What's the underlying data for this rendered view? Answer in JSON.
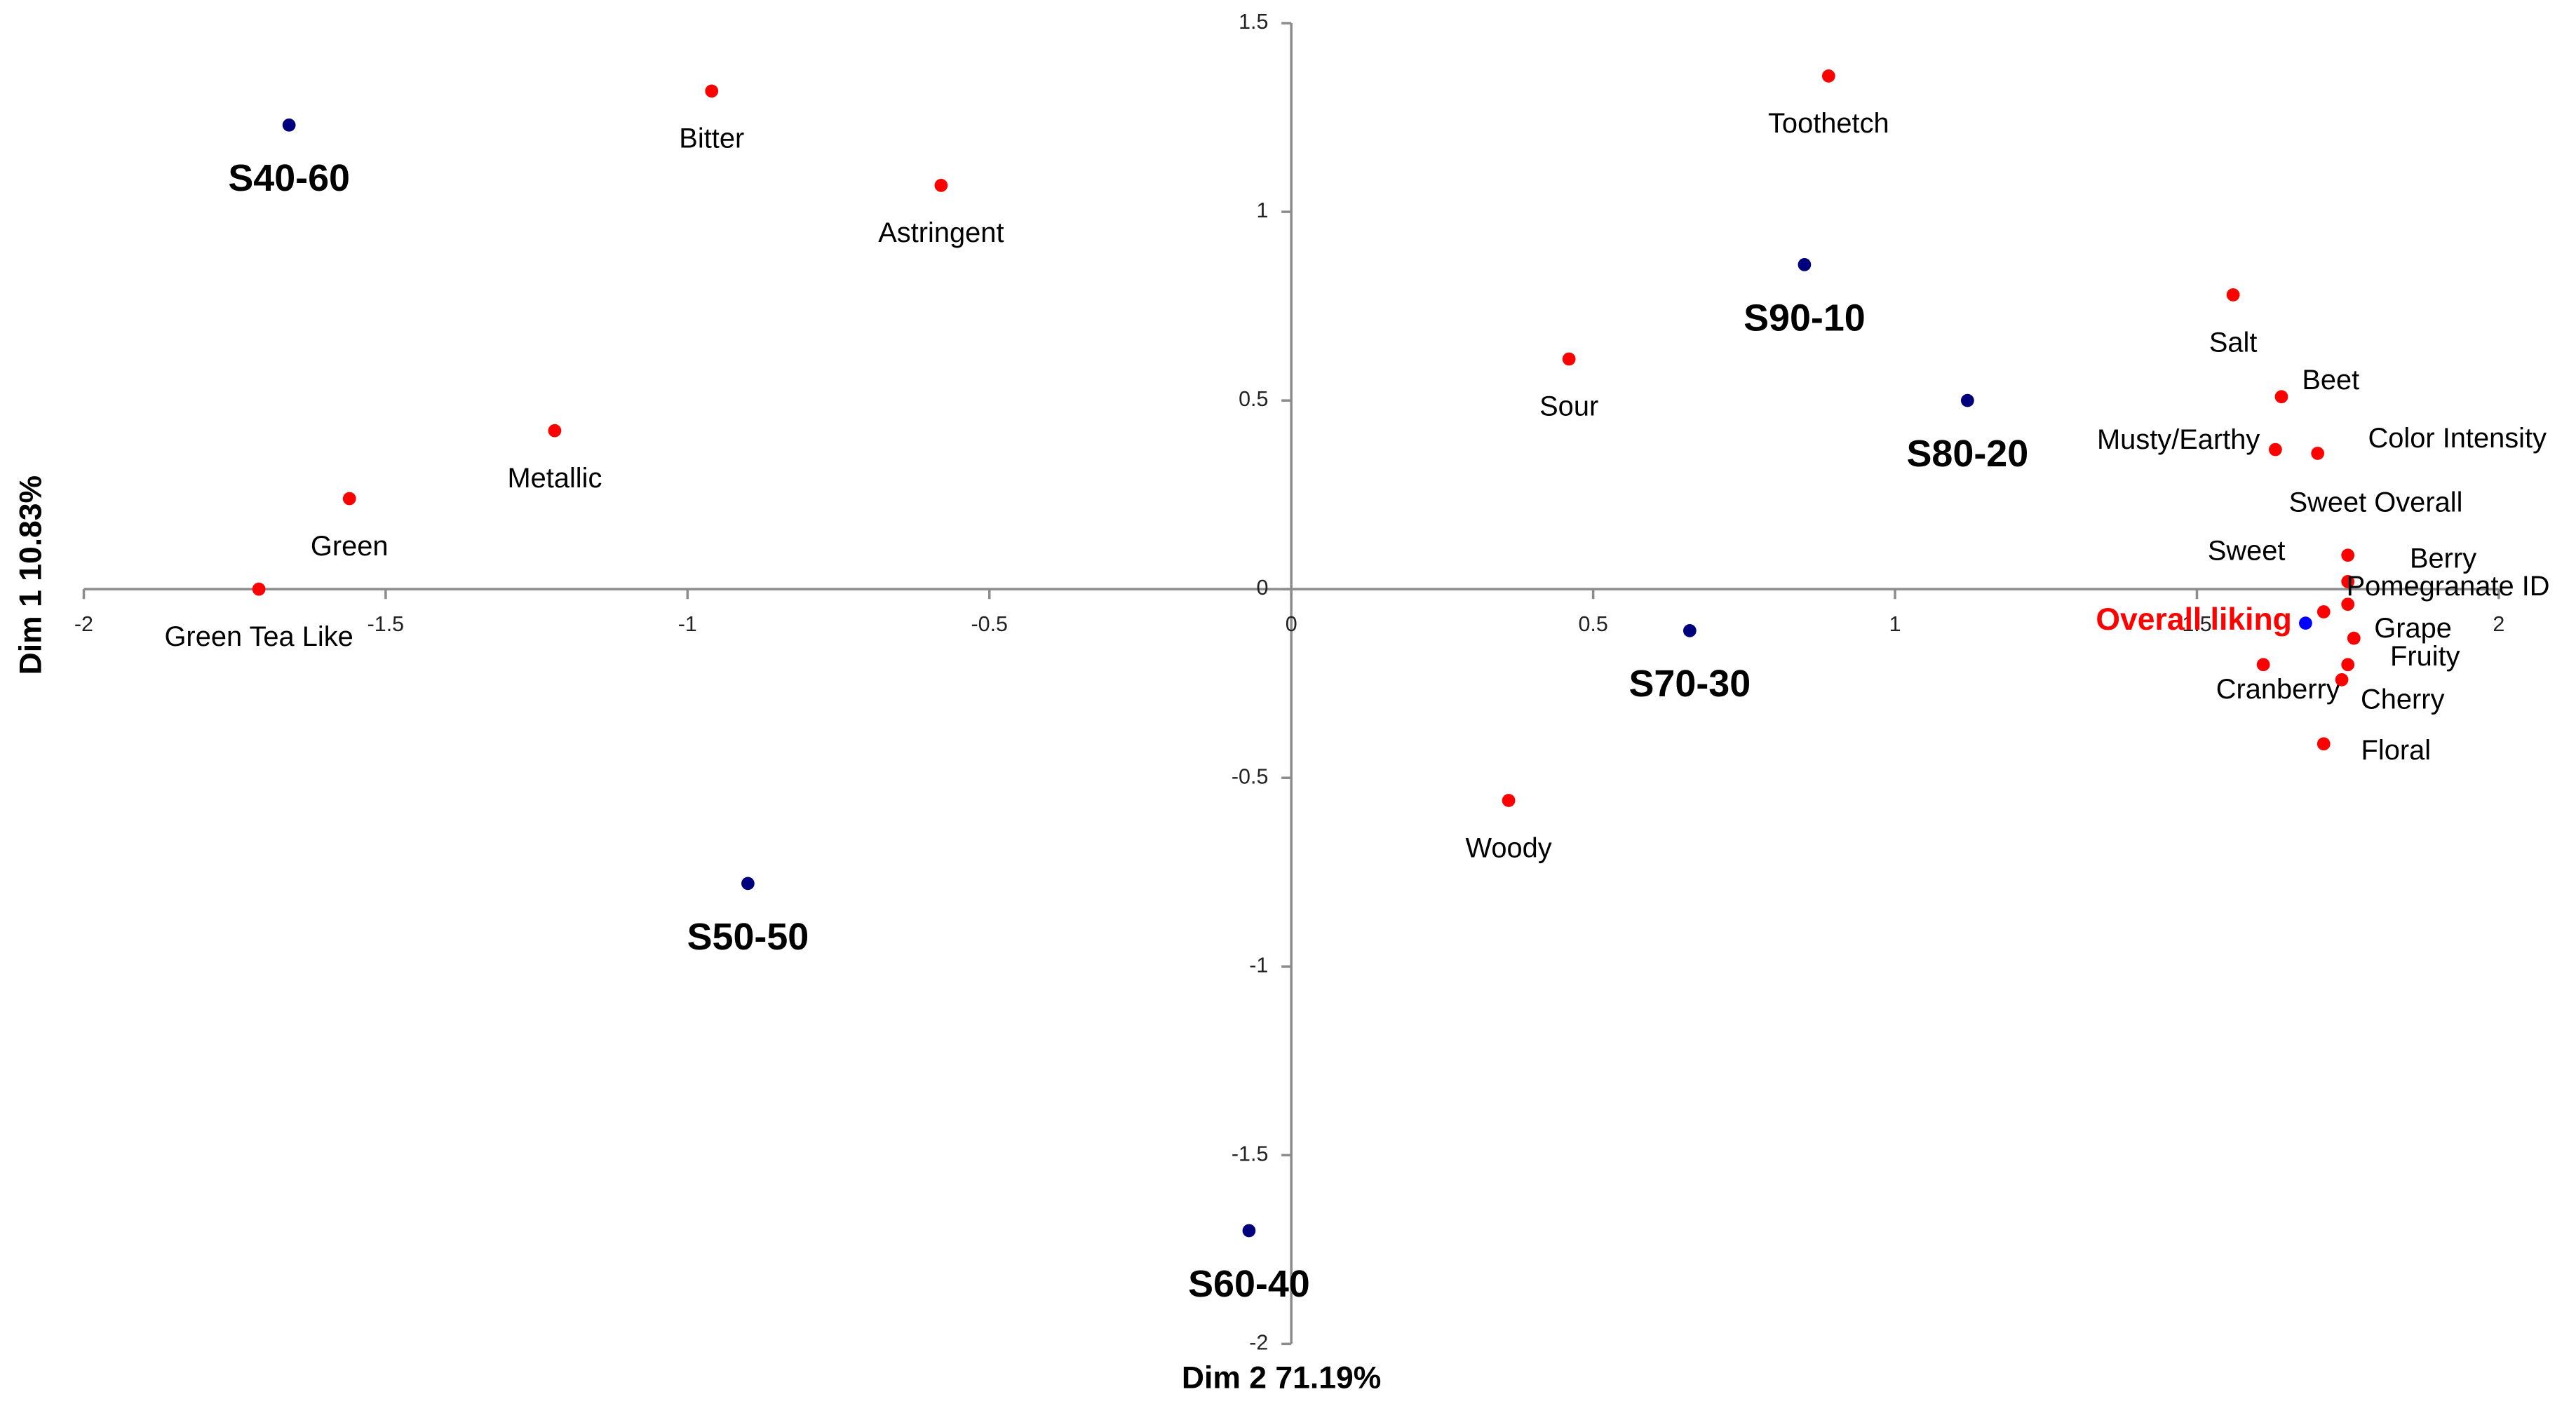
{
  "chart_data": {
    "type": "scatter",
    "x_label": "Dim 2 71.19%",
    "y_label": "Dim 1 10.83%",
    "xlim": [
      -2,
      2
    ],
    "ylim": [
      -2,
      1.5
    ],
    "xticks": [
      -2,
      -1.5,
      -1,
      -0.5,
      0,
      0.5,
      1,
      1.5,
      2
    ],
    "yticks": [
      -2,
      -1.5,
      -1,
      -0.5,
      0,
      0.5,
      1,
      1.5
    ],
    "series": [
      {
        "color": "#00007f",
        "label_style": "bold",
        "label_color": "#000000",
        "labels": [
          "S40-60",
          "S90-10",
          "S80-20",
          "S70-30",
          "S50-50",
          "S60-40"
        ],
        "x": [
          -1.66,
          0.85,
          1.12,
          0.66,
          -0.9,
          -0.07
        ],
        "y": [
          1.23,
          0.86,
          0.5,
          -0.11,
          -0.78,
          -1.7
        ]
      },
      {
        "color": "#ff0000",
        "label_style": "normal",
        "label_color": "#000000",
        "labels": [
          "Bitter",
          "Toothetch",
          "Astringent",
          "Salt",
          "Sour",
          "Metallic",
          "Beet",
          "Musty/Earthy",
          "Color Intensity",
          "Green",
          "Green Tea Like",
          "Sweet Overall",
          "Berry",
          "Pomegranate ID",
          "Sweet",
          "Grape",
          "Fruity",
          "Cranberry",
          "Cherry",
          "Floral",
          "Woody"
        ],
        "x": [
          -0.96,
          0.89,
          -0.58,
          1.56,
          0.46,
          -1.22,
          1.64,
          1.63,
          1.7,
          -1.56,
          -1.71,
          1.75,
          1.75,
          1.75,
          1.71,
          1.76,
          1.75,
          1.61,
          1.74,
          1.71,
          0.36
        ],
        "y": [
          1.32,
          1.36,
          1.07,
          0.78,
          0.61,
          0.42,
          0.51,
          0.37,
          0.36,
          0.24,
          0.0,
          0.09,
          0.02,
          -0.04,
          -0.06,
          -0.13,
          -0.2,
          -0.2,
          -0.24,
          -0.41,
          -0.56
        ]
      },
      {
        "color": "#0000ff",
        "label_style": "bold",
        "label_color": "#ff0000",
        "labels": [
          "Overall liking"
        ],
        "x": [
          1.68
        ],
        "y": [
          -0.09
        ]
      }
    ]
  }
}
